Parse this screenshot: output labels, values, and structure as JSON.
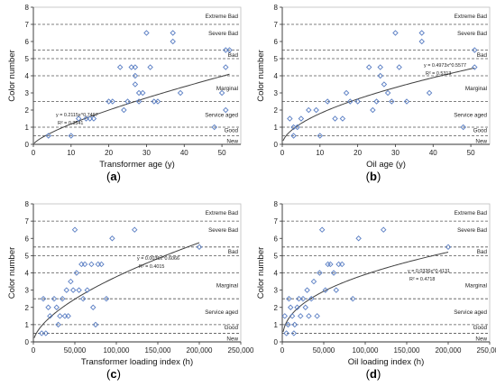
{
  "colors": {
    "marker": "#5b7fc4",
    "trend": "#404040",
    "axis": "#333333",
    "band_line": "#555555"
  },
  "chart_data": [
    {
      "type": "scatter",
      "panel_label": "(a)",
      "xlabel": "Transformer age (y)",
      "ylabel": "Color number",
      "xlim": [
        0,
        55
      ],
      "ylim": [
        0,
        8
      ],
      "xticks": [
        0,
        10,
        20,
        30,
        40,
        50
      ],
      "xtick_labels": [
        "0",
        "10",
        "20",
        "30",
        "40",
        "50"
      ],
      "yticks": [
        0,
        1,
        2,
        3,
        4,
        5,
        6,
        7,
        8
      ],
      "ytick_labels": [
        "0",
        "1",
        "2",
        "3",
        "4",
        "5",
        "6",
        "7",
        "8"
      ],
      "trend": {
        "type": "power",
        "a": 0.2115,
        "b": 0.7497,
        "equation": "y = 0.2115x^0.7497",
        "r2": "R² = 0.3541"
      },
      "bands": [
        {
          "label": "Extreme Bad",
          "y": 7.0,
          "label_y": 7.5
        },
        {
          "label": "Severe Bad",
          "y": 5.5,
          "label_y": 6.5
        },
        {
          "label": "Bad",
          "y": 5.0,
          "label_y": 5.25
        },
        {
          "label": "Marginal",
          "y": 4.0,
          "label_y": 3.3
        },
        {
          "label": "Service aged",
          "y": 2.5,
          "label_y": 1.75
        },
        {
          "label": "Good",
          "y": 1.0,
          "label_y": 0.85
        },
        {
          "label": "New",
          "y": 0.5,
          "label_y": 0.2
        }
      ],
      "points": [
        [
          4,
          0.5
        ],
        [
          10,
          0.5
        ],
        [
          12,
          1.5
        ],
        [
          14,
          1.5
        ],
        [
          15,
          1.5
        ],
        [
          16,
          1.5
        ],
        [
          20,
          2.5
        ],
        [
          21,
          2.5
        ],
        [
          23,
          4.5
        ],
        [
          24,
          2.0
        ],
        [
          25,
          2.5
        ],
        [
          26,
          4.5
        ],
        [
          27,
          4.0
        ],
        [
          27,
          3.5
        ],
        [
          27,
          4.5
        ],
        [
          28,
          3.0
        ],
        [
          28,
          2.5
        ],
        [
          29,
          3.0
        ],
        [
          30,
          6.5
        ],
        [
          31,
          4.5
        ],
        [
          32,
          2.5
        ],
        [
          33,
          2.5
        ],
        [
          37,
          6.5
        ],
        [
          37,
          6.0
        ],
        [
          39,
          3.0
        ],
        [
          48,
          1.0
        ],
        [
          50,
          3.0
        ],
        [
          51,
          4.5
        ],
        [
          51,
          2.0
        ],
        [
          51,
          5.5
        ],
        [
          52,
          5.5
        ]
      ]
    },
    {
      "type": "scatter",
      "panel_label": "(b)",
      "xlabel": "Oil age (y)",
      "ylabel": "Color number",
      "xlim": [
        0,
        55
      ],
      "ylim": [
        0,
        8
      ],
      "xticks": [
        0,
        10,
        20,
        30,
        40,
        50
      ],
      "xtick_labels": [
        "0",
        "10",
        "20",
        "30",
        "40",
        "50"
      ],
      "yticks": [
        0,
        1,
        2,
        3,
        4,
        5,
        6,
        7,
        8
      ],
      "ytick_labels": [
        "0",
        "1",
        "2",
        "3",
        "4",
        "5",
        "6",
        "7",
        "8"
      ],
      "trend": {
        "type": "power",
        "a": 0.4973,
        "b": 0.5577,
        "equation": "y = 0.4973x^0.5577",
        "r2": "R² = 0.5313"
      },
      "bands": [
        {
          "label": "Extreme Bad",
          "y": 7.0,
          "label_y": 7.5
        },
        {
          "label": "Severe Bad",
          "y": 5.5,
          "label_y": 6.5
        },
        {
          "label": "Bad",
          "y": 5.0,
          "label_y": 5.25
        },
        {
          "label": "Marginal",
          "y": 4.0,
          "label_y": 3.3
        },
        {
          "label": "Service aged",
          "y": 2.5,
          "label_y": 1.75
        },
        {
          "label": "Good",
          "y": 1.0,
          "label_y": 0.85
        },
        {
          "label": "New",
          "y": 0.5,
          "label_y": 0.2
        }
      ],
      "points": [
        [
          2,
          1.5
        ],
        [
          3,
          0.5
        ],
        [
          3,
          1.0
        ],
        [
          4,
          1.0
        ],
        [
          5,
          1.5
        ],
        [
          7,
          2.0
        ],
        [
          9,
          2.0
        ],
        [
          10,
          0.5
        ],
        [
          12,
          2.5
        ],
        [
          14,
          1.5
        ],
        [
          16,
          1.5
        ],
        [
          17,
          3.0
        ],
        [
          18,
          2.5
        ],
        [
          20,
          2.5
        ],
        [
          23,
          4.5
        ],
        [
          24,
          2.0
        ],
        [
          25,
          2.5
        ],
        [
          26,
          4.5
        ],
        [
          26,
          4.0
        ],
        [
          27,
          3.5
        ],
        [
          28,
          3.0
        ],
        [
          29,
          2.5
        ],
        [
          30,
          6.5
        ],
        [
          31,
          4.5
        ],
        [
          33,
          2.5
        ],
        [
          37,
          6.5
        ],
        [
          37,
          6.0
        ],
        [
          39,
          3.0
        ],
        [
          48,
          1.0
        ],
        [
          51,
          4.5
        ],
        [
          51,
          5.5
        ]
      ]
    },
    {
      "type": "scatter",
      "panel_label": "(c)",
      "xlabel": "Transformer loading index (h)",
      "ylabel": "Color number",
      "xlim": [
        0,
        250000
      ],
      "ylim": [
        0,
        8
      ],
      "xticks": [
        0,
        50000,
        100000,
        150000,
        200000,
        250000
      ],
      "xtick_labels": [
        "0",
        "50,000",
        "100,000",
        "150,000",
        "200,000",
        "250,000"
      ],
      "yticks": [
        0,
        1,
        2,
        3,
        4,
        5,
        6,
        7,
        8
      ],
      "ytick_labels": [
        "0",
        "1",
        "2",
        "3",
        "4",
        "5",
        "6",
        "7",
        "8"
      ],
      "trend": {
        "type": "power",
        "a": 0.0035,
        "b": 0.6066,
        "equation": "y = 0.0035x^0.6066",
        "r2": "R² = 0.4015"
      },
      "bands": [
        {
          "label": "Extreme Bad",
          "y": 7.0,
          "label_y": 7.5
        },
        {
          "label": "Severe Bad",
          "y": 5.5,
          "label_y": 6.5
        },
        {
          "label": "Bad",
          "y": 5.0,
          "label_y": 5.25
        },
        {
          "label": "Marginal",
          "y": 4.0,
          "label_y": 3.3
        },
        {
          "label": "Service aged",
          "y": 2.5,
          "label_y": 1.75
        },
        {
          "label": "Good",
          "y": 1.0,
          "label_y": 0.85
        },
        {
          "label": "New",
          "y": 0.5,
          "label_y": 0.2
        }
      ],
      "points": [
        [
          10000,
          0.5
        ],
        [
          12000,
          2.5
        ],
        [
          15000,
          0.5
        ],
        [
          18000,
          2.0
        ],
        [
          20000,
          1.5
        ],
        [
          25000,
          2.5
        ],
        [
          28000,
          2.0
        ],
        [
          30000,
          1.0
        ],
        [
          32000,
          1.5
        ],
        [
          35000,
          2.5
        ],
        [
          38000,
          1.5
        ],
        [
          40000,
          3.0
        ],
        [
          42000,
          1.5
        ],
        [
          45000,
          3.5
        ],
        [
          48000,
          3.0
        ],
        [
          50000,
          6.5
        ],
        [
          52000,
          4.0
        ],
        [
          55000,
          3.0
        ],
        [
          58000,
          4.5
        ],
        [
          60000,
          2.5
        ],
        [
          62000,
          4.5
        ],
        [
          65000,
          3.0
        ],
        [
          70000,
          4.5
        ],
        [
          72000,
          2.0
        ],
        [
          75000,
          1.0
        ],
        [
          78000,
          4.5
        ],
        [
          82000,
          4.5
        ],
        [
          88000,
          2.5
        ],
        [
          95000,
          6.0
        ],
        [
          122000,
          6.5
        ],
        [
          200000,
          5.5
        ]
      ]
    },
    {
      "type": "scatter",
      "panel_label": "(d)",
      "xlabel": "Oil loading index (h)",
      "ylabel": "Color number",
      "xlim": [
        0,
        250000
      ],
      "ylim": [
        0,
        8
      ],
      "xticks": [
        0,
        50000,
        100000,
        150000,
        200000,
        250000
      ],
      "xtick_labels": [
        "0",
        "50,000",
        "100,000",
        "150,000",
        "200,000",
        "250,000"
      ],
      "yticks": [
        0,
        1,
        2,
        3,
        4,
        5,
        6,
        7,
        8
      ],
      "ytick_labels": [
        "0",
        "1",
        "2",
        "3",
        "4",
        "5",
        "6",
        "7",
        "8"
      ],
      "trend": {
        "type": "power",
        "a": 0.0336,
        "b": 0.4131,
        "equation": "y = 0.0336x^0.4131",
        "r2": "R² = 0.4718"
      },
      "bands": [
        {
          "label": "Extreme Bad",
          "y": 7.0,
          "label_y": 7.5
        },
        {
          "label": "Severe Bad",
          "y": 5.5,
          "label_y": 6.5
        },
        {
          "label": "Bad",
          "y": 5.0,
          "label_y": 5.25
        },
        {
          "label": "Marginal",
          "y": 4.0,
          "label_y": 3.3
        },
        {
          "label": "Service aged",
          "y": 2.5,
          "label_y": 1.75
        },
        {
          "label": "Good",
          "y": 1.0,
          "label_y": 0.85
        },
        {
          "label": "New",
          "y": 0.5,
          "label_y": 0.2
        }
      ],
      "points": [
        [
          3000,
          1.5
        ],
        [
          5000,
          0.5
        ],
        [
          7000,
          1.0
        ],
        [
          8000,
          2.5
        ],
        [
          10000,
          2.0
        ],
        [
          12000,
          1.5
        ],
        [
          14000,
          0.5
        ],
        [
          15000,
          1.0
        ],
        [
          18000,
          2.0
        ],
        [
          20000,
          2.5
        ],
        [
          22000,
          1.5
        ],
        [
          25000,
          2.5
        ],
        [
          28000,
          2.0
        ],
        [
          30000,
          3.0
        ],
        [
          32000,
          1.5
        ],
        [
          35000,
          2.5
        ],
        [
          38000,
          3.5
        ],
        [
          42000,
          1.5
        ],
        [
          45000,
          4.0
        ],
        [
          48000,
          6.5
        ],
        [
          52000,
          3.0
        ],
        [
          55000,
          4.5
        ],
        [
          58000,
          4.5
        ],
        [
          62000,
          4.0
        ],
        [
          65000,
          3.0
        ],
        [
          68000,
          4.5
        ],
        [
          72000,
          4.5
        ],
        [
          85000,
          2.5
        ],
        [
          92000,
          6.0
        ],
        [
          122000,
          6.5
        ],
        [
          200000,
          5.5
        ]
      ]
    }
  ]
}
